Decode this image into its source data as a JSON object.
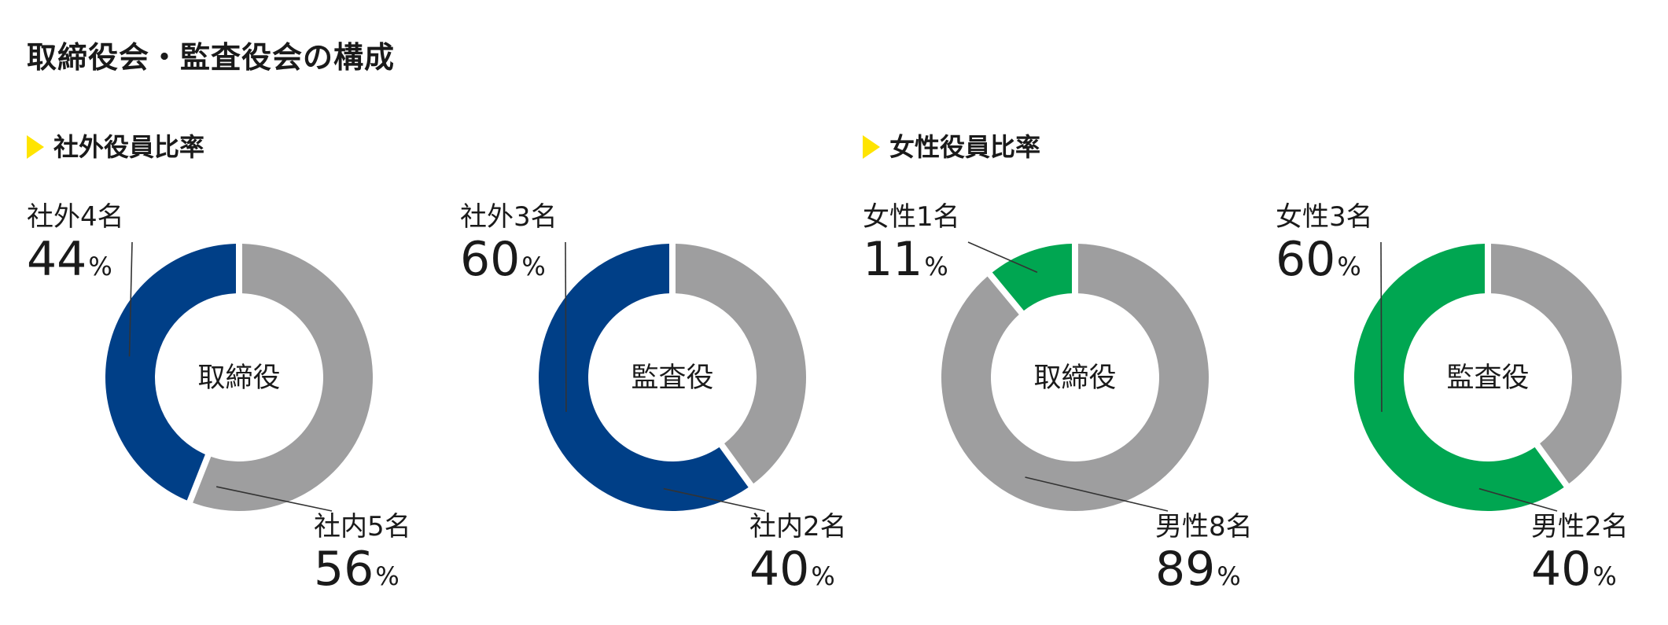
{
  "page_title": "取締役会・監査役会の構成",
  "sections": [
    {
      "title": "社外役員比率",
      "icon": "yellow-triangle-icon"
    },
    {
      "title": "女性役員比率",
      "icon": "yellow-triangle-icon"
    }
  ],
  "colors": {
    "outside": "#003f87",
    "female": "#00a651",
    "other": "#9e9e9f",
    "marker": "#ffe400"
  },
  "chart_data": [
    {
      "type": "pie",
      "center_label": "取締役",
      "slices": [
        {
          "label": "社外4名",
          "value": 44,
          "unit": "%",
          "color": "#003f87"
        },
        {
          "label": "社内5名",
          "value": 56,
          "unit": "%",
          "color": "#9e9e9f"
        }
      ]
    },
    {
      "type": "pie",
      "center_label": "監査役",
      "slices": [
        {
          "label": "社外3名",
          "value": 60,
          "unit": "%",
          "color": "#003f87"
        },
        {
          "label": "社内2名",
          "value": 40,
          "unit": "%",
          "color": "#9e9e9f"
        }
      ]
    },
    {
      "type": "pie",
      "center_label": "取締役",
      "slices": [
        {
          "label": "女性1名",
          "value": 11,
          "unit": "%",
          "color": "#00a651"
        },
        {
          "label": "男性8名",
          "value": 89,
          "unit": "%",
          "color": "#9e9e9f"
        }
      ]
    },
    {
      "type": "pie",
      "center_label": "監査役",
      "slices": [
        {
          "label": "女性3名",
          "value": 60,
          "unit": "%",
          "color": "#00a651"
        },
        {
          "label": "男性2名",
          "value": 40,
          "unit": "%",
          "color": "#9e9e9f"
        }
      ]
    }
  ]
}
